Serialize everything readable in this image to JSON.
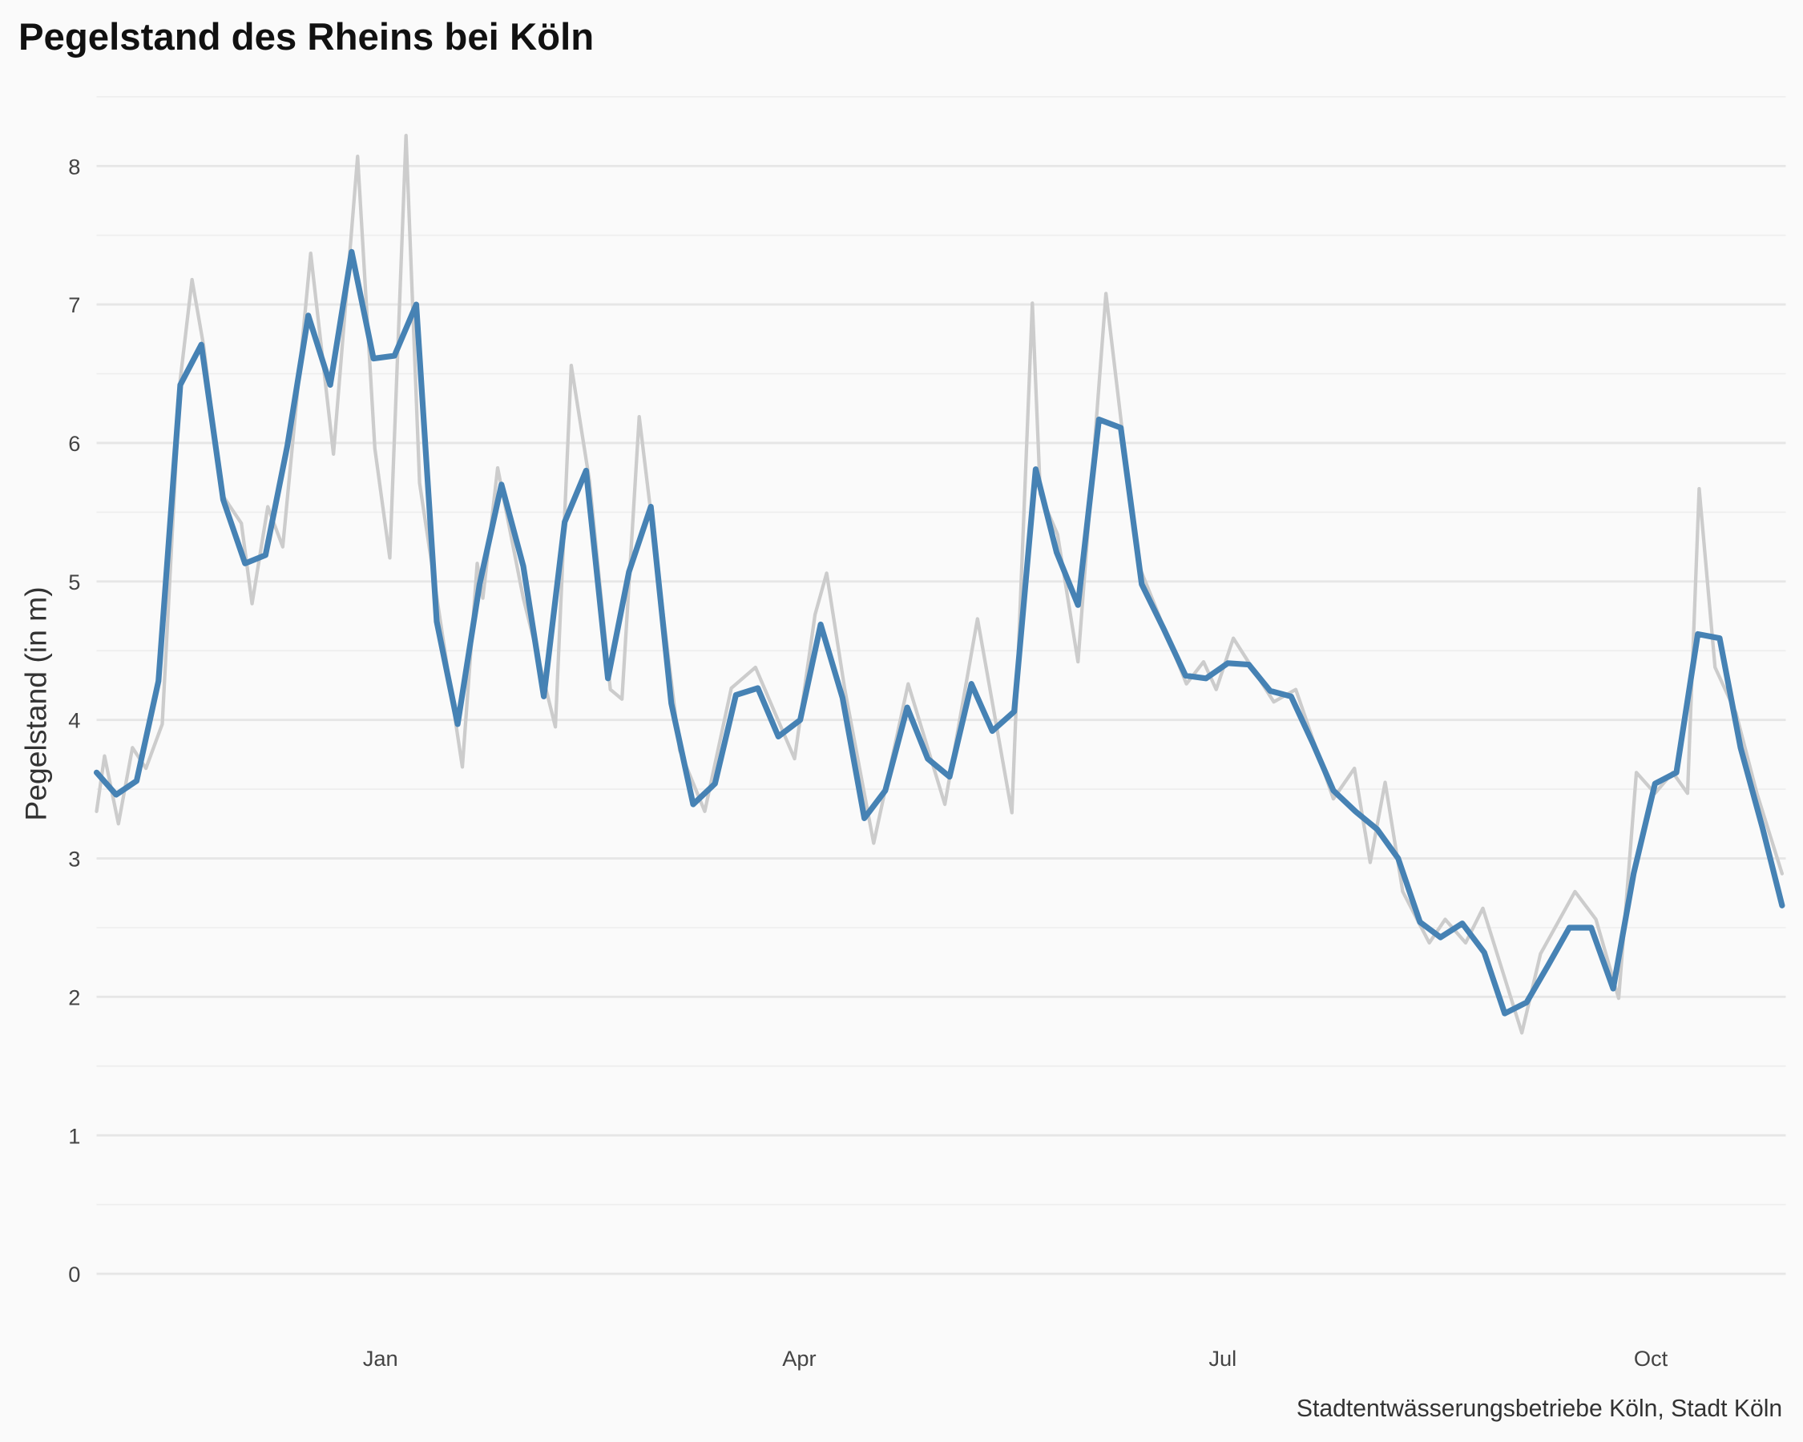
{
  "chart_data": {
    "type": "line",
    "title": "Pegelstand des Rheins bei Köln",
    "y_label": "Pegelstand (in m)",
    "caption": "Stadtentwässerungsbetriebe Köln, Stadt Köln",
    "xlim": [
      0,
      363
    ],
    "xticks": [
      {
        "value": 61,
        "label": "Jan"
      },
      {
        "value": 151,
        "label": "Apr"
      },
      {
        "value": 242,
        "label": "Jul"
      },
      {
        "value": 334,
        "label": "Oct"
      }
    ],
    "ylim": [
      -0.2,
      8.5
    ],
    "yticks": [
      0,
      1,
      2,
      3,
      4,
      5,
      6,
      7,
      8
    ],
    "minor_yticks": [
      0.5,
      1.5,
      2.5,
      3.5,
      4.5,
      5.5,
      6.5,
      7.5,
      8.5
    ],
    "grid": true,
    "series": [
      {
        "color": "#cccccc",
        "x": [
          0,
          1.7,
          4.7,
          7.7,
          10.6,
          14.1,
          18,
          20.5,
          23,
          26.9,
          31.1,
          33.4,
          36.8,
          40,
          46,
          50.9,
          56.1,
          59.8,
          63,
          66.5,
          69.4,
          78.6,
          81.8,
          83,
          86.2,
          91.7,
          98.6,
          102,
          105.9,
          110.4,
          112.9,
          116.6,
          125.3,
          130.7,
          136.4,
          141.6,
          150,
          154.4,
          156.9,
          160.8,
          167,
          174.4,
          182.3,
          189.3,
          196.7,
          201.1,
          202.8,
          206.5,
          210.9,
          216.9,
          223.8,
          234.2,
          237.9,
          240.6,
          244.3,
          253,
          257.7,
          265.8,
          270.3,
          273.7,
          276.9,
          280.7,
          286.4,
          289.8,
          294.2,
          297.9,
          306.3,
          310.3,
          317.7,
          322.2,
          327.1,
          330.9,
          334.9,
          338.7,
          341.9,
          344.4,
          347.8,
          352.3,
          356.8,
          362.2
        ],
        "values": [
          3.34,
          3.74,
          3.25,
          3.8,
          3.65,
          3.97,
          6.46,
          7.18,
          6.7,
          5.63,
          5.42,
          4.84,
          5.54,
          5.25,
          7.37,
          5.92,
          8.07,
          5.96,
          5.17,
          8.22,
          5.71,
          3.66,
          5.13,
          4.88,
          5.82,
          4.88,
          3.95,
          6.56,
          5.73,
          4.22,
          4.15,
          6.19,
          3.78,
          3.34,
          4.23,
          4.38,
          3.72,
          4.76,
          5.06,
          4.22,
          3.11,
          4.26,
          3.39,
          4.73,
          3.33,
          7.01,
          5.63,
          5.34,
          4.42,
          7.08,
          5.13,
          4.26,
          4.42,
          4.22,
          4.59,
          4.13,
          4.22,
          3.43,
          3.65,
          2.97,
          3.55,
          2.76,
          2.39,
          2.56,
          2.39,
          2.64,
          1.74,
          2.31,
          2.76,
          2.56,
          1.99,
          3.62,
          3.47,
          3.62,
          3.47,
          5.67,
          4.38,
          4.05,
          3.47,
          2.89
        ]
      },
      {
        "color": "#4682b4",
        "x": [
          0,
          4.2,
          8.6,
          13.3,
          18,
          22.5,
          27.2,
          31.9,
          36.3,
          41,
          45.5,
          50.2,
          54.8,
          59.5,
          64,
          68.7,
          73.1,
          77.6,
          82.3,
          87,
          91.7,
          96.1,
          100.6,
          105.2,
          109.9,
          114.4,
          119.1,
          123.5,
          128.2,
          132.9,
          137.4,
          142.1,
          146.5,
          151.2,
          155.6,
          160.3,
          165,
          169.5,
          174.2,
          178.6,
          183.3,
          188,
          192.5,
          197.2,
          201.8,
          206.3,
          210.9,
          215.4,
          220.1,
          224.6,
          229.3,
          234,
          238.4,
          243.1,
          247.6,
          252.2,
          256.7,
          261.4,
          265.8,
          270.5,
          275.2,
          279.7,
          284.4,
          288.8,
          293.5,
          298.2,
          302.6,
          307.3,
          311.8,
          316.5,
          321.2,
          325.9,
          330.3,
          334.9,
          339.5,
          344.1,
          348.8,
          353.3,
          358,
          362.2
        ],
        "values": [
          3.62,
          3.46,
          3.56,
          4.28,
          6.42,
          6.71,
          5.59,
          5.13,
          5.19,
          5.98,
          6.92,
          6.42,
          7.38,
          6.61,
          6.63,
          7.0,
          4.71,
          3.97,
          4.98,
          5.7,
          5.11,
          4.17,
          5.43,
          5.8,
          4.3,
          5.07,
          5.54,
          4.12,
          3.39,
          3.54,
          4.18,
          4.23,
          3.88,
          4.0,
          4.69,
          4.16,
          3.29,
          3.49,
          4.09,
          3.72,
          3.59,
          4.26,
          3.92,
          4.06,
          5.81,
          5.21,
          4.83,
          6.17,
          6.11,
          4.98,
          4.66,
          4.32,
          4.3,
          4.41,
          4.4,
          4.21,
          4.17,
          3.83,
          3.49,
          3.34,
          3.21,
          3.0,
          2.54,
          2.43,
          2.53,
          2.32,
          1.88,
          1.96,
          2.22,
          2.5,
          2.5,
          2.06,
          2.89,
          3.54,
          3.62,
          4.62,
          4.59,
          3.8,
          3.22,
          2.66
        ]
      }
    ]
  }
}
